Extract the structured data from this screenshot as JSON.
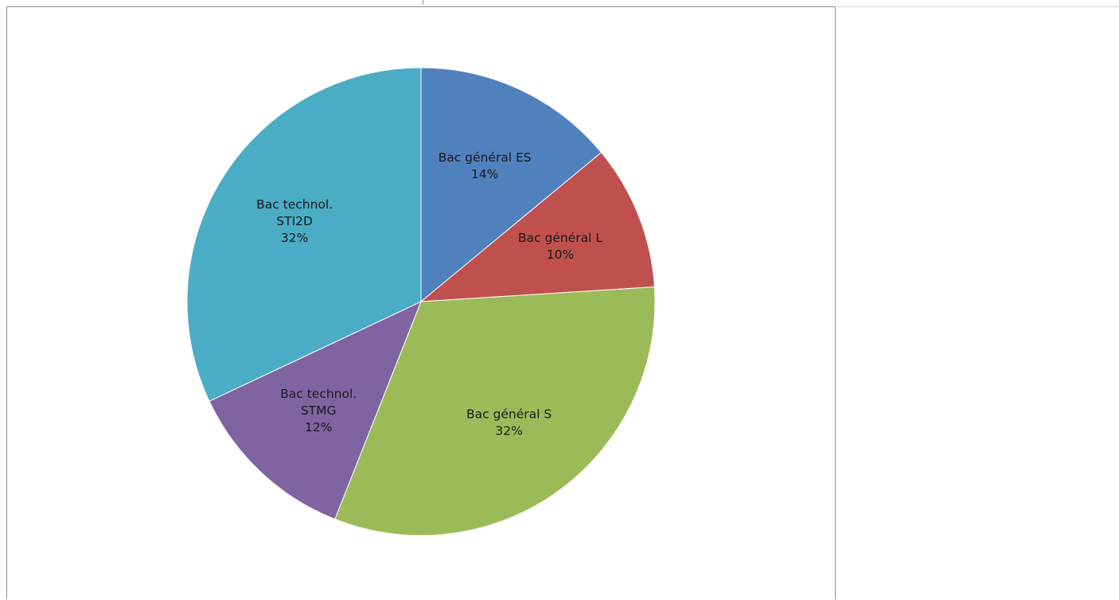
{
  "chart_data": {
    "type": "pie",
    "title": "",
    "start_angle_deg": 0,
    "direction": "clockwise",
    "legend": "none",
    "slices": [
      {
        "label_lines": [
          "Bac général ES"
        ],
        "value": 14,
        "value_label": "14%",
        "color": "#4f81bd"
      },
      {
        "label_lines": [
          "Bac général L"
        ],
        "value": 10,
        "value_label": "10%",
        "color": "#c0504d"
      },
      {
        "label_lines": [
          "Bac général S"
        ],
        "value": 32,
        "value_label": "32%",
        "color": "#9bbb59"
      },
      {
        "label_lines": [
          "Bac technol.",
          "STMG"
        ],
        "value": 12,
        "value_label": "12%",
        "color": "#8064a2"
      },
      {
        "label_lines": [
          "Bac technol.",
          "STI2D"
        ],
        "value": 32,
        "value_label": "32%",
        "color": "#4bacc6"
      }
    ]
  }
}
